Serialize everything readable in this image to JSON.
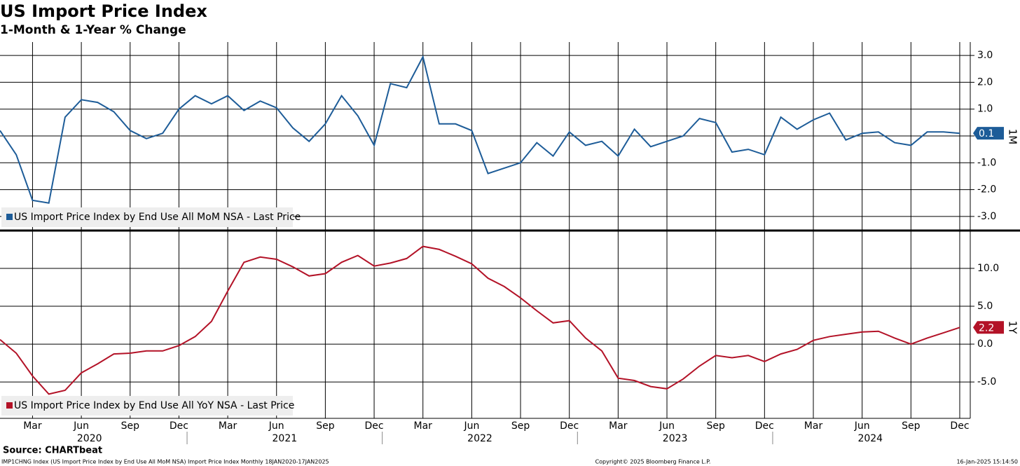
{
  "title": "US Import Price Index",
  "subtitle": "1-Month & 1-Year % Change",
  "source": "Source: CHARTbeat",
  "footer_left": "IMP1CHNG Index (US Import Price Index by End Use All MoM NSA) Import Price Index  Monthly 18JAN2020-17JAN2025",
  "footer_center": "Copyright© 2025 Bloomberg Finance L.P.",
  "footer_right": "16-Jan-2025 15:14:50",
  "chart_data": [
    {
      "type": "line",
      "panel_label": "1M",
      "x": [
        "2020-01",
        "2020-02",
        "2020-03",
        "2020-04",
        "2020-05",
        "2020-06",
        "2020-07",
        "2020-08",
        "2020-09",
        "2020-10",
        "2020-11",
        "2020-12",
        "2021-01",
        "2021-02",
        "2021-03",
        "2021-04",
        "2021-05",
        "2021-06",
        "2021-07",
        "2021-08",
        "2021-09",
        "2021-10",
        "2021-11",
        "2021-12",
        "2022-01",
        "2022-02",
        "2022-03",
        "2022-04",
        "2022-05",
        "2022-06",
        "2022-07",
        "2022-08",
        "2022-09",
        "2022-10",
        "2022-11",
        "2022-12",
        "2023-01",
        "2023-02",
        "2023-03",
        "2023-04",
        "2023-05",
        "2023-06",
        "2023-07",
        "2023-08",
        "2023-09",
        "2023-10",
        "2023-11",
        "2023-12",
        "2024-01",
        "2024-02",
        "2024-03",
        "2024-04",
        "2024-05",
        "2024-06",
        "2024-07",
        "2024-08",
        "2024-09",
        "2024-10",
        "2024-11",
        "2024-12"
      ],
      "series": [
        {
          "name": "US Import Price Index by End Use All MoM NSA - Last Price",
          "color": "#1d5c98",
          "values": [
            0.2,
            -0.7,
            -2.4,
            -2.5,
            0.7,
            1.35,
            1.25,
            0.9,
            0.2,
            -0.1,
            0.1,
            1.0,
            1.5,
            1.2,
            1.5,
            0.95,
            1.3,
            1.05,
            0.3,
            -0.2,
            0.45,
            1.5,
            0.75,
            -0.35,
            1.95,
            1.8,
            2.95,
            0.45,
            0.45,
            0.2,
            -1.4,
            -1.2,
            -1.0,
            -0.25,
            -0.75,
            0.15,
            -0.35,
            -0.2,
            -0.75,
            0.25,
            -0.4,
            -0.2,
            0.0,
            0.65,
            0.5,
            -0.6,
            -0.5,
            -0.7,
            0.7,
            0.25,
            0.6,
            0.85,
            -0.15,
            0.1,
            0.15,
            -0.25,
            -0.35,
            0.15,
            0.15,
            0.1
          ]
        }
      ],
      "ylim": [
        -3.5,
        3.5
      ],
      "yticks": [
        {
          "value": 3,
          "label": "3.0"
        },
        {
          "value": 2,
          "label": "2.0"
        },
        {
          "value": 1,
          "label": "1.0"
        },
        {
          "value": 0,
          "label": "0.0"
        },
        {
          "value": -1,
          "label": "-1.0"
        },
        {
          "value": -2,
          "label": "-2.0"
        },
        {
          "value": -3,
          "label": "-3.0"
        }
      ],
      "grid": true
    },
    {
      "type": "line",
      "panel_label": "1Y",
      "x": [
        "2020-01",
        "2020-02",
        "2020-03",
        "2020-04",
        "2020-05",
        "2020-06",
        "2020-07",
        "2020-08",
        "2020-09",
        "2020-10",
        "2020-11",
        "2020-12",
        "2021-01",
        "2021-02",
        "2021-03",
        "2021-04",
        "2021-05",
        "2021-06",
        "2021-07",
        "2021-08",
        "2021-09",
        "2021-10",
        "2021-11",
        "2021-12",
        "2022-01",
        "2022-02",
        "2022-03",
        "2022-04",
        "2022-05",
        "2022-06",
        "2022-07",
        "2022-08",
        "2022-09",
        "2022-10",
        "2022-11",
        "2022-12",
        "2023-01",
        "2023-02",
        "2023-03",
        "2023-04",
        "2023-05",
        "2023-06",
        "2023-07",
        "2023-08",
        "2023-09",
        "2023-10",
        "2023-11",
        "2023-12",
        "2024-01",
        "2024-02",
        "2024-03",
        "2024-04",
        "2024-05",
        "2024-06",
        "2024-07",
        "2024-08",
        "2024-09",
        "2024-10",
        "2024-11",
        "2024-12"
      ],
      "series": [
        {
          "name": "US Import Price Index by End Use All YoY NSA - Last Price",
          "color": "#b31227",
          "values": [
            0.6,
            -1.2,
            -4.2,
            -6.6,
            -6.1,
            -3.8,
            -2.6,
            -1.3,
            -1.2,
            -0.9,
            -0.9,
            -0.2,
            1.0,
            3.0,
            7.0,
            10.8,
            11.5,
            11.2,
            10.2,
            9.0,
            9.3,
            10.8,
            11.7,
            10.3,
            10.7,
            11.3,
            12.9,
            12.5,
            11.6,
            10.6,
            8.7,
            7.6,
            6.1,
            4.4,
            2.8,
            3.1,
            0.8,
            -0.9,
            -4.5,
            -4.8,
            -5.6,
            -5.9,
            -4.6,
            -2.9,
            -1.5,
            -1.8,
            -1.5,
            -2.3,
            -1.3,
            -0.7,
            0.5,
            1.0,
            1.3,
            1.6,
            1.7,
            0.8,
            0.0,
            0.8,
            1.5,
            2.2
          ]
        }
      ],
      "ylim": [
        -9.8,
        14.9
      ],
      "yticks": [
        {
          "value": 10,
          "label": "10.0"
        },
        {
          "value": 5,
          "label": "5.0"
        },
        {
          "value": 0,
          "label": "0.0"
        },
        {
          "value": -5,
          "label": "-5.0"
        }
      ],
      "grid": true,
      "xticks": [
        {
          "value": "2020-03",
          "label": "Mar"
        },
        {
          "value": "2020-06",
          "label": "Jun"
        },
        {
          "value": "2020-09",
          "label": "Sep"
        },
        {
          "value": "2020-12",
          "label": "Dec"
        },
        {
          "value": "2021-03",
          "label": "Mar"
        },
        {
          "value": "2021-06",
          "label": "Jun"
        },
        {
          "value": "2021-09",
          "label": "Sep"
        },
        {
          "value": "2021-12",
          "label": "Dec"
        },
        {
          "value": "2022-03",
          "label": "Mar"
        },
        {
          "value": "2022-06",
          "label": "Jun"
        },
        {
          "value": "2022-09",
          "label": "Sep"
        },
        {
          "value": "2022-12",
          "label": "Dec"
        },
        {
          "value": "2023-03",
          "label": "Mar"
        },
        {
          "value": "2023-06",
          "label": "Jun"
        },
        {
          "value": "2023-09",
          "label": "Sep"
        },
        {
          "value": "2023-12",
          "label": "Dec"
        },
        {
          "value": "2024-03",
          "label": "Mar"
        },
        {
          "value": "2024-06",
          "label": "Jun"
        },
        {
          "value": "2024-09",
          "label": "Sep"
        },
        {
          "value": "2024-12",
          "label": "Dec"
        }
      ],
      "year_labels": [
        "2020",
        "2021",
        "2022",
        "2023",
        "2024"
      ]
    }
  ]
}
